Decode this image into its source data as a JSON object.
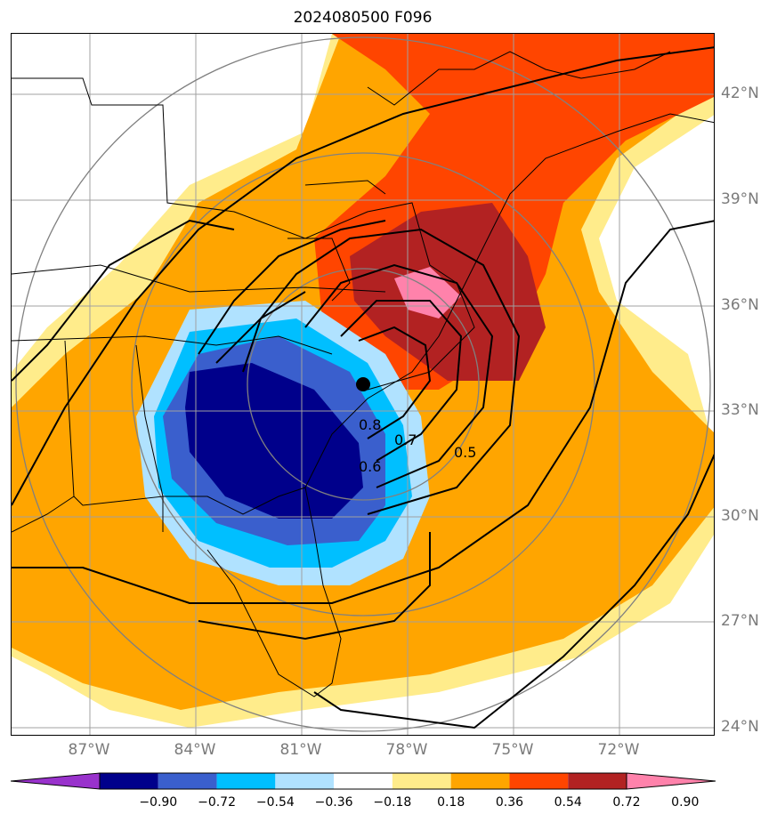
{
  "title": "2024080500 F096",
  "lat_labels": [
    "42°N",
    "39°N",
    "36°N",
    "33°N",
    "30°N",
    "27°N",
    "24°N"
  ],
  "lon_labels": [
    "87°W",
    "84°W",
    "81°W",
    "78°W",
    "75°W",
    "72°W"
  ],
  "colorbar": {
    "ticks": [
      "−0.90",
      "−0.72",
      "−0.54",
      "−0.36",
      "−0.18",
      "0.18",
      "0.36",
      "0.54",
      "0.72",
      "0.90"
    ],
    "colors": [
      "#9932cc",
      "#00008b",
      "#3a5fcd",
      "#00bfff",
      "#b0e2ff",
      "#ffffff",
      "#ffec8b",
      "#ffa500",
      "#ff4500",
      "#b22222",
      "#ff82ab"
    ]
  },
  "contour_labels": [
    "0.8",
    "0.7",
    "0.6",
    "0.5"
  ],
  "colors": {
    "land_line": "#000000",
    "grid": "#a0a0a0",
    "range_ring": "#808080"
  }
}
